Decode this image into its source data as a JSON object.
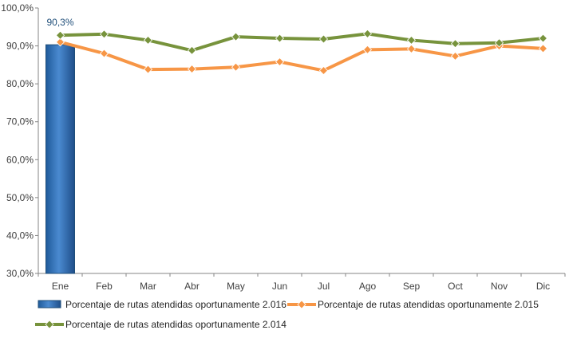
{
  "chart_data": {
    "type": "bar",
    "categories": [
      "Ene",
      "Feb",
      "Mar",
      "Abr",
      "May",
      "Jun",
      "Jul",
      "Ago",
      "Sep",
      "Oct",
      "Nov",
      "Dic"
    ],
    "ylim": [
      30,
      100
    ],
    "yticks": [
      "30,0%",
      "40,0%",
      "50,0%",
      "60,0%",
      "70,0%",
      "80,0%",
      "90,0%",
      "100,0%"
    ],
    "title": "",
    "xlabel": "",
    "ylabel": "",
    "grid": false,
    "legend_position": "bottom",
    "series": [
      {
        "name": "Porcentaje de rutas atendidas oportunamente 2.016",
        "type": "bar",
        "color": "#2e75b6",
        "values": [
          90.3,
          null,
          null,
          null,
          null,
          null,
          null,
          null,
          null,
          null,
          null,
          null
        ],
        "data_labels": [
          "90,3%"
        ]
      },
      {
        "name": "Porcentaje de rutas atendidas oportunamente 2.015",
        "type": "line",
        "marker": "diamond",
        "color": "#f79646",
        "values": [
          91.0,
          88.0,
          83.8,
          83.9,
          84.4,
          85.8,
          83.5,
          89.0,
          89.2,
          87.3,
          90.0,
          89.3
        ]
      },
      {
        "name": "Porcentaje de rutas atendidas oportunamente 2.014",
        "type": "line",
        "marker": "diamond",
        "color": "#77933c",
        "values": [
          92.8,
          93.1,
          91.5,
          88.8,
          92.4,
          92.0,
          91.8,
          93.2,
          91.5,
          90.6,
          90.8,
          92.0
        ]
      }
    ]
  }
}
